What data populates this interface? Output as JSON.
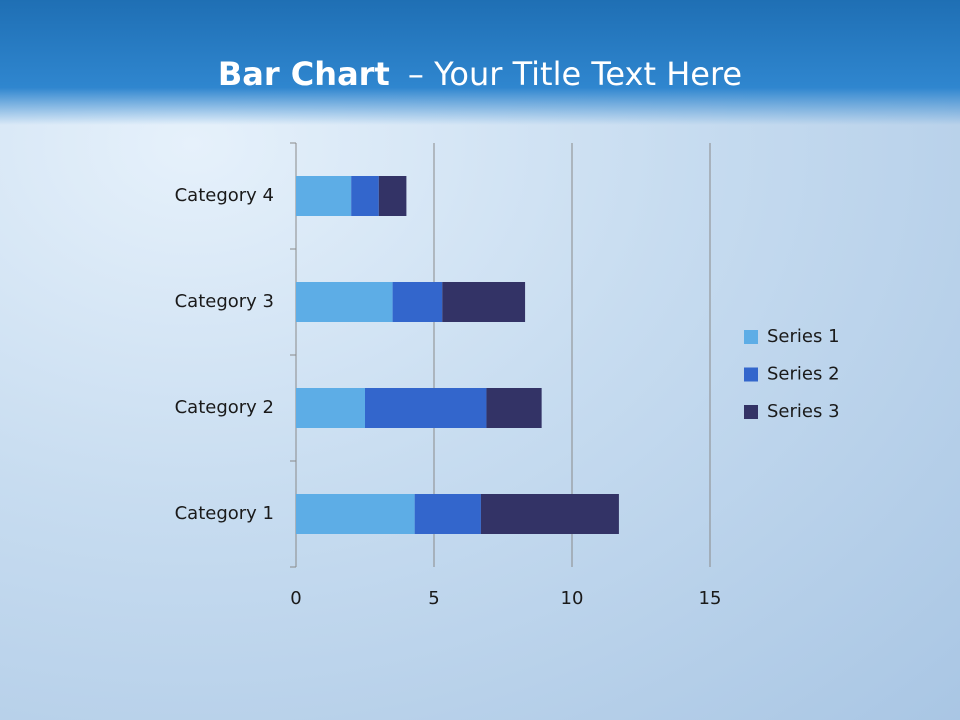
{
  "chart_data": {
    "type": "stacked-bar-horizontal",
    "title": [
      "Bar Chart",
      "– Your Title Text Here"
    ],
    "categories": [
      "Category 1",
      "Category 2",
      "Category 3",
      "Category 4"
    ],
    "series": [
      {
        "name": "Series 1",
        "color": "#5dade6",
        "values": [
          4.3,
          2.5,
          3.5,
          2
        ]
      },
      {
        "name": "Series 2",
        "color": "#3366cc",
        "values": [
          2.4,
          4.4,
          1.8,
          1
        ]
      },
      {
        "name": "Series 3",
        "color": "#333366",
        "values": [
          5,
          2,
          3,
          1
        ]
      }
    ],
    "xlim": [
      0,
      15
    ],
    "xticks": [
      0,
      5,
      10,
      15
    ],
    "grid": true,
    "legend": "right"
  }
}
